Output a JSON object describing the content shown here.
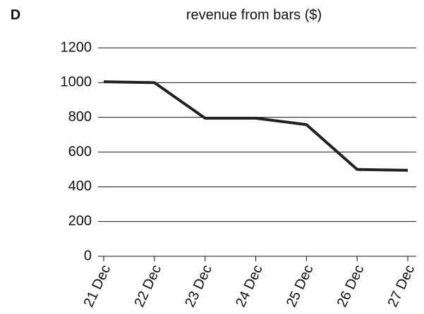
{
  "chart_data": {
    "type": "line",
    "panel_label": "D",
    "title": "revenue from bars ($)",
    "categories": [
      "21 Dec",
      "22 Dec",
      "23 Dec",
      "24 Dec",
      "25 Dec",
      "26 Dec",
      "27 Dec"
    ],
    "values": [
      1005,
      1000,
      795,
      795,
      758,
      500,
      495
    ],
    "color": "#231f20",
    "ylim": [
      0,
      1200
    ],
    "yticks": [
      0,
      200,
      400,
      600,
      800,
      1000,
      1200
    ],
    "grid": true
  }
}
